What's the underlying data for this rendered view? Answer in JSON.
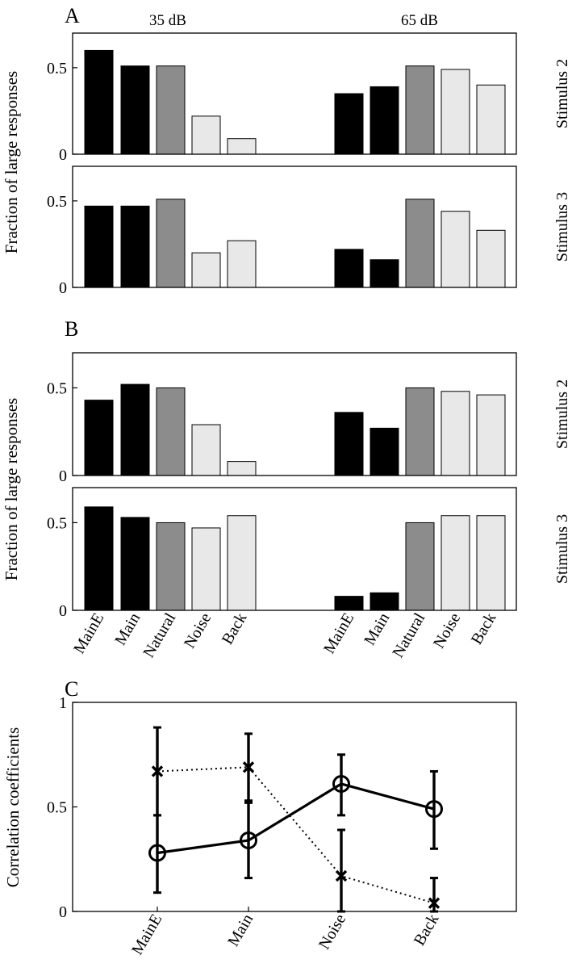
{
  "figure": {
    "panel_labels": [
      "A",
      "B",
      "C"
    ],
    "column_headers": [
      "35 dB",
      "65 dB"
    ],
    "bar_ylabel": "Fraction of large responses",
    "colors": {
      "main": "#000000",
      "natural": "#8c8c8c",
      "light": "#e8e8e8"
    }
  },
  "chart_data": [
    {
      "type": "bar",
      "panel": "A",
      "row_label": "Stimulus 2",
      "ylabel": "Fraction of large responses",
      "groups": [
        "35 dB",
        "65 dB"
      ],
      "categories": [
        "MainE",
        "Main",
        "Natural",
        "Noise",
        "Back"
      ],
      "series": [
        {
          "name": "35 dB",
          "values": [
            0.6,
            0.51,
            0.51,
            0.22,
            0.09
          ]
        },
        {
          "name": "65 dB",
          "values": [
            0.35,
            0.39,
            0.51,
            0.49,
            0.4
          ]
        }
      ],
      "ylim": [
        0,
        0.7
      ],
      "yticks": [
        "0",
        "0.5"
      ]
    },
    {
      "type": "bar",
      "panel": "A",
      "row_label": "Stimulus 3",
      "ylabel": "Fraction of large responses",
      "groups": [
        "35 dB",
        "65 dB"
      ],
      "categories": [
        "MainE",
        "Main",
        "Natural",
        "Noise",
        "Back"
      ],
      "series": [
        {
          "name": "35 dB",
          "values": [
            0.47,
            0.47,
            0.51,
            0.2,
            0.27
          ]
        },
        {
          "name": "65 dB",
          "values": [
            0.22,
            0.16,
            0.51,
            0.44,
            0.33
          ]
        }
      ],
      "ylim": [
        0,
        0.7
      ],
      "yticks": [
        "0",
        "0.5"
      ]
    },
    {
      "type": "bar",
      "panel": "B",
      "row_label": "Stimulus 2",
      "ylabel": "Fraction of large responses",
      "groups": [
        "35 dB",
        "65 dB"
      ],
      "categories": [
        "MainE",
        "Main",
        "Natural",
        "Noise",
        "Back"
      ],
      "series": [
        {
          "name": "35 dB",
          "values": [
            0.43,
            0.52,
            0.5,
            0.29,
            0.08
          ]
        },
        {
          "name": "65 dB",
          "values": [
            0.36,
            0.27,
            0.5,
            0.48,
            0.46
          ]
        }
      ],
      "ylim": [
        0,
        0.7
      ],
      "yticks": [
        "0",
        "0.5"
      ]
    },
    {
      "type": "bar",
      "panel": "B",
      "row_label": "Stimulus 3",
      "ylabel": "Fraction of large responses",
      "groups": [
        "35 dB",
        "65 dB"
      ],
      "categories": [
        "MainE",
        "Main",
        "Natural",
        "Noise",
        "Back"
      ],
      "series": [
        {
          "name": "35 dB",
          "values": [
            0.59,
            0.53,
            0.5,
            0.47,
            0.54
          ]
        },
        {
          "name": "65 dB",
          "values": [
            0.08,
            0.1,
            0.5,
            0.54,
            0.54
          ]
        }
      ],
      "ylim": [
        0,
        0.7
      ],
      "yticks": [
        "0",
        "0.5"
      ]
    },
    {
      "type": "line",
      "panel": "C",
      "ylabel": "Correlation coefficients",
      "categories": [
        "MainE",
        "Main",
        "Noise",
        "Back"
      ],
      "series": [
        {
          "name": "circles (solid line)",
          "marker": "circle",
          "line": "solid",
          "values": [
            0.28,
            0.34,
            0.61,
            0.49
          ],
          "err_low": [
            0.09,
            0.16,
            0.46,
            0.3
          ],
          "err_high": [
            0.46,
            0.52,
            0.75,
            0.67
          ]
        },
        {
          "name": "crosses (dotted line)",
          "marker": "x",
          "line": "dotted",
          "values": [
            0.67,
            0.69,
            0.17,
            0.04
          ],
          "err_low": [
            0.46,
            0.53,
            0.0,
            0.0
          ],
          "err_high": [
            0.88,
            0.85,
            0.39,
            0.16
          ]
        }
      ],
      "ylim": [
        0,
        1
      ],
      "yticks": [
        "0",
        "0.5",
        "1"
      ]
    }
  ]
}
